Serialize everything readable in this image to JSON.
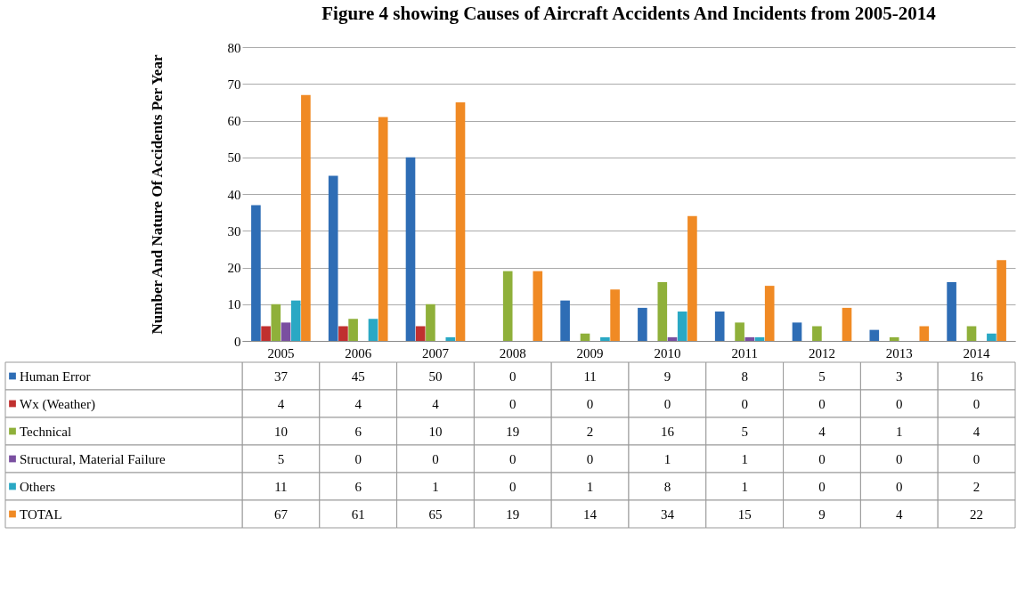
{
  "chart_data": {
    "type": "bar",
    "title": "Figure 4 showing Causes of Aircraft Accidents And Incidents from 2005-2014",
    "ylabel": "Number And Nature Of Accidents Per Year",
    "categories": [
      "2005",
      "2006",
      "2007",
      "2008",
      "2009",
      "2010",
      "2011",
      "2012",
      "2013",
      "2014"
    ],
    "series": [
      {
        "name": "Human Error",
        "color": "#2e6db5",
        "values": [
          37,
          45,
          50,
          0,
          11,
          9,
          8,
          5,
          3,
          16
        ]
      },
      {
        "name": "Wx (Weather)",
        "color": "#c0302f",
        "values": [
          4,
          4,
          4,
          0,
          0,
          0,
          0,
          0,
          0,
          0
        ]
      },
      {
        "name": "Technical",
        "color": "#8fb03a",
        "values": [
          10,
          6,
          10,
          19,
          2,
          16,
          5,
          4,
          1,
          4
        ]
      },
      {
        "name": "Structural, Material Failure",
        "color": "#7a4fa0",
        "values": [
          5,
          0,
          0,
          0,
          0,
          1,
          1,
          0,
          0,
          0
        ]
      },
      {
        "name": "Others",
        "color": "#2aa8c4",
        "values": [
          11,
          6,
          1,
          0,
          1,
          8,
          1,
          0,
          0,
          2
        ]
      },
      {
        "name": "TOTAL",
        "color": "#f08a24",
        "values": [
          67,
          61,
          65,
          19,
          14,
          34,
          15,
          9,
          4,
          22
        ]
      }
    ],
    "ylim": [
      0,
      80
    ],
    "yticks": [
      0,
      10,
      20,
      30,
      40,
      50,
      60,
      70,
      80
    ],
    "grid": "y",
    "data_labels": true,
    "legend": "bottom"
  }
}
